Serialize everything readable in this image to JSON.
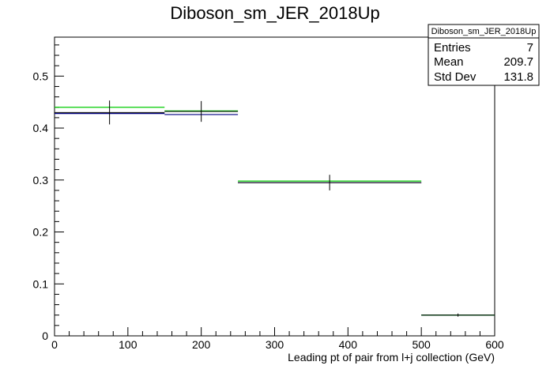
{
  "chart_data": {
    "type": "histogram",
    "title": "Diboson_sm_JER_2018Up",
    "xlabel": "Leading pt of pair from l+j collection (GeV)",
    "ylabel": "",
    "xlim": [
      0,
      600
    ],
    "ylim": [
      0,
      0.575
    ],
    "x_ticks": [
      0,
      100,
      200,
      300,
      400,
      500,
      600
    ],
    "y_ticks": [
      0,
      0.1,
      0.2,
      0.3,
      0.4,
      0.5
    ],
    "x_tick_labels": [
      "0",
      "100",
      "200",
      "300",
      "400",
      "500",
      "600"
    ],
    "y_tick_labels": [
      "0",
      "0.1",
      "0.2",
      "0.3",
      "0.4",
      "0.5"
    ],
    "grid": false,
    "bin_edges": [
      0,
      150,
      250,
      500,
      600
    ],
    "series": [
      {
        "color": "#000000",
        "style": "points-with-errors",
        "values": [
          0.43,
          0.432,
          0.295,
          0.04
        ],
        "errors": [
          0.023,
          0.02,
          0.015,
          0.003
        ]
      },
      {
        "color": "#000080",
        "style": "step",
        "values": [
          0.428,
          0.426,
          0.295,
          0.04
        ]
      },
      {
        "color": "#00cc00",
        "style": "step",
        "values": [
          0.44,
          0.433,
          0.298,
          0.04
        ]
      }
    ],
    "stats_box": {
      "name": "Diboson_sm_JER_2018Up",
      "rows": [
        {
          "label": "Entries",
          "value": "7"
        },
        {
          "label": "Mean",
          "value": "209.7"
        },
        {
          "label": "Std Dev",
          "value": "131.8"
        }
      ],
      "placement": "top-right"
    }
  }
}
